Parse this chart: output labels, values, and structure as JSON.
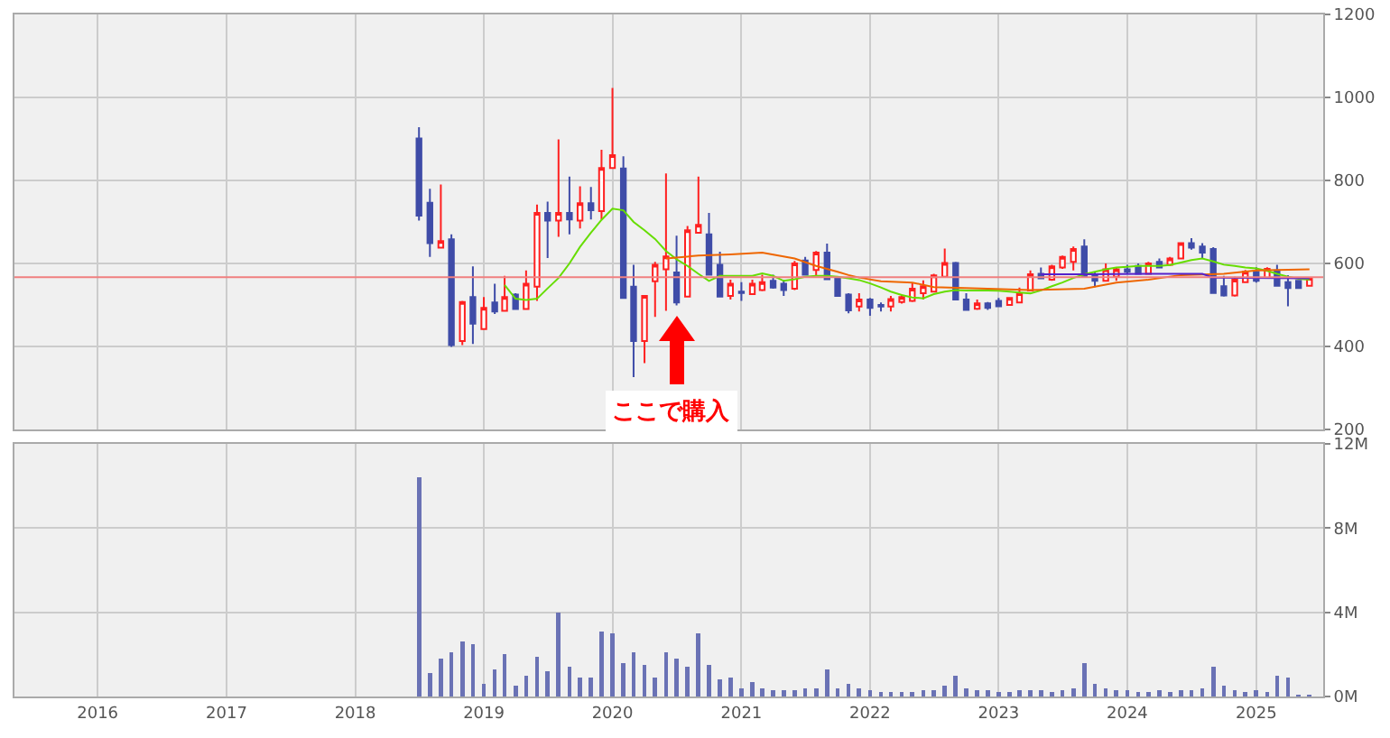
{
  "chart_data": [
    {
      "type": "candlestick",
      "xlim": [
        "2015-05-10",
        "2025-07-10"
      ],
      "xticks": [
        "2016",
        "2017",
        "2018",
        "2019",
        "2020",
        "2021",
        "2022",
        "2023",
        "2024",
        "2025"
      ],
      "ylim": [
        200,
        1200
      ],
      "yticks": [
        200,
        400,
        600,
        800,
        1000,
        1200
      ],
      "grid": true,
      "tick_labels": "y",
      "ref_lines": [
        {
          "axis": "y",
          "value": 567,
          "color": "#f08080"
        }
      ],
      "annotations": [
        "ここで購入"
      ],
      "x": [
        "2018-07",
        "2018-08",
        "2018-09",
        "2018-10",
        "2018-11",
        "2018-12",
        "2019-01",
        "2019-02",
        "2019-03",
        "2019-04",
        "2019-05",
        "2019-06",
        "2019-07",
        "2019-08",
        "2019-09",
        "2019-10",
        "2019-11",
        "2019-12",
        "2020-01",
        "2020-02",
        "2020-03",
        "2020-04",
        "2020-05",
        "2020-06",
        "2020-07",
        "2020-08",
        "2020-09",
        "2020-10",
        "2020-11",
        "2020-12",
        "2021-01",
        "2021-02",
        "2021-03",
        "2021-04",
        "2021-05",
        "2021-06",
        "2021-07",
        "2021-08",
        "2021-09",
        "2021-10",
        "2021-11",
        "2021-12",
        "2022-01",
        "2022-02",
        "2022-03",
        "2022-04",
        "2022-05",
        "2022-06",
        "2022-07",
        "2022-08",
        "2022-09",
        "2022-10",
        "2022-11",
        "2022-12",
        "2023-01",
        "2023-02",
        "2023-03",
        "2023-04",
        "2023-05",
        "2023-06",
        "2023-07",
        "2023-08",
        "2023-09",
        "2023-10",
        "2023-11",
        "2023-12",
        "2024-01",
        "2024-02",
        "2024-03",
        "2024-04",
        "2024-05",
        "2024-06",
        "2024-07",
        "2024-08",
        "2024-09",
        "2024-10",
        "2024-11",
        "2024-12",
        "2025-01",
        "2025-02",
        "2025-03",
        "2025-04",
        "2025-05",
        "2025-06"
      ],
      "ohlc": [
        [
          901,
          928,
          703,
          715
        ],
        [
          746,
          780,
          616,
          649
        ],
        [
          638,
          790,
          638,
          654
        ],
        [
          658,
          670,
          399,
          403
        ],
        [
          413,
          510,
          403,
          507
        ],
        [
          519,
          593,
          406,
          455
        ],
        [
          442,
          519,
          442,
          493
        ],
        [
          506,
          551,
          478,
          484
        ],
        [
          486,
          570,
          486,
          519
        ],
        [
          525,
          528,
          488,
          490
        ],
        [
          490,
          583,
          490,
          551
        ],
        [
          544,
          742,
          510,
          722
        ],
        [
          722,
          749,
          613,
          703
        ],
        [
          703,
          899,
          664,
          722
        ],
        [
          722,
          809,
          670,
          706
        ],
        [
          703,
          786,
          684,
          745
        ],
        [
          745,
          784,
          706,
          728
        ],
        [
          726,
          874,
          706,
          830
        ],
        [
          830,
          1023,
          830,
          861
        ],
        [
          829,
          858,
          517,
          517
        ],
        [
          544,
          597,
          326,
          413
        ],
        [
          413,
          522,
          360,
          522
        ],
        [
          557,
          604,
          471,
          597
        ],
        [
          586,
          817,
          486,
          617
        ],
        [
          578,
          667,
          499,
          506
        ],
        [
          520,
          690,
          520,
          680
        ],
        [
          674,
          809,
          674,
          693
        ],
        [
          670,
          722,
          573,
          573
        ],
        [
          597,
          628,
          520,
          520
        ],
        [
          522,
          561,
          513,
          551
        ],
        [
          532,
          555,
          510,
          529
        ],
        [
          526,
          561,
          526,
          551
        ],
        [
          536,
          573,
          533,
          555
        ],
        [
          558,
          573,
          539,
          542
        ],
        [
          551,
          561,
          522,
          536
        ],
        [
          539,
          606,
          536,
          600
        ],
        [
          607,
          616,
          571,
          573
        ],
        [
          584,
          630,
          571,
          626
        ],
        [
          626,
          648,
          560,
          562
        ],
        [
          565,
          565,
          520,
          522
        ],
        [
          525,
          528,
          480,
          487
        ],
        [
          496,
          528,
          484,
          513
        ],
        [
          513,
          517,
          474,
          493
        ],
        [
          500,
          506,
          484,
          496
        ],
        [
          496,
          522,
          484,
          514
        ],
        [
          507,
          525,
          503,
          519
        ],
        [
          510,
          554,
          507,
          539
        ],
        [
          528,
          559,
          513,
          545
        ],
        [
          532,
          575,
          532,
          571
        ],
        [
          568,
          636,
          565,
          601
        ],
        [
          601,
          604,
          513,
          513
        ],
        [
          513,
          528,
          488,
          488
        ],
        [
          491,
          513,
          488,
          504
        ],
        [
          504,
          507,
          488,
          493
        ],
        [
          510,
          517,
          496,
          497
        ],
        [
          500,
          517,
          500,
          517
        ],
        [
          506,
          542,
          506,
          528
        ],
        [
          535,
          583,
          535,
          574
        ],
        [
          575,
          590,
          564,
          564
        ],
        [
          561,
          597,
          558,
          593
        ],
        [
          590,
          619,
          587,
          616
        ],
        [
          604,
          641,
          583,
          635
        ],
        [
          641,
          658,
          568,
          568
        ],
        [
          574,
          580,
          543,
          558
        ],
        [
          558,
          600,
          558,
          586
        ],
        [
          568,
          590,
          558,
          586
        ],
        [
          586,
          597,
          575,
          580
        ],
        [
          594,
          600,
          575,
          575
        ],
        [
          575,
          604,
          575,
          600
        ],
        [
          604,
          612,
          590,
          590
        ],
        [
          597,
          616,
          594,
          612
        ],
        [
          612,
          649,
          612,
          649
        ],
        [
          649,
          661,
          633,
          638
        ],
        [
          641,
          649,
          612,
          626
        ],
        [
          635,
          639,
          529,
          529
        ],
        [
          545,
          570,
          520,
          523
        ],
        [
          523,
          568,
          520,
          561
        ],
        [
          555,
          584,
          555,
          580
        ],
        [
          580,
          591,
          554,
          558
        ],
        [
          565,
          591,
          565,
          587
        ],
        [
          583,
          597,
          546,
          546
        ],
        [
          555,
          572,
          497,
          541
        ],
        [
          558,
          558,
          541,
          541
        ],
        [
          546,
          565,
          546,
          565
        ]
      ],
      "series": [
        {
          "type": "line",
          "color": "#66dd00",
          "x": [
            "2019-03",
            "2019-04",
            "2019-05",
            "2019-06",
            "2019-07",
            "2019-08",
            "2019-09",
            "2019-10",
            "2019-11",
            "2019-12",
            "2020-01",
            "2020-02",
            "2020-03",
            "2020-04",
            "2020-05",
            "2020-06",
            "2020-07",
            "2020-08",
            "2020-09",
            "2020-10",
            "2020-11",
            "2020-12",
            "2021-01",
            "2021-02",
            "2021-03",
            "2021-04",
            "2021-05",
            "2021-06",
            "2021-07",
            "2021-08",
            "2021-09",
            "2021-10",
            "2021-11",
            "2021-12",
            "2022-01",
            "2022-02",
            "2022-03",
            "2022-04",
            "2022-05",
            "2022-06",
            "2022-07",
            "2022-08",
            "2022-09",
            "2022-10",
            "2022-11",
            "2022-12",
            "2023-01",
            "2023-02",
            "2023-03",
            "2023-04",
            "2023-05",
            "2023-06",
            "2023-07",
            "2023-08",
            "2023-09",
            "2023-10",
            "2023-11",
            "2023-12",
            "2024-01",
            "2024-02",
            "2024-03",
            "2024-04",
            "2024-05",
            "2024-06",
            "2024-07",
            "2024-08",
            "2024-09",
            "2024-10",
            "2024-11",
            "2024-12",
            "2025-01",
            "2025-02",
            "2025-03",
            "2025-04",
            "2025-05",
            "2025-06"
          ],
          "values": [
            548,
            515,
            512,
            515,
            540,
            565,
            600,
            640,
            674,
            705,
            732,
            728,
            700,
            680,
            659,
            630,
            610,
            594,
            575,
            558,
            570,
            570,
            570,
            570,
            576,
            570,
            558,
            562,
            568,
            570,
            570,
            568,
            564,
            560,
            552,
            542,
            532,
            524,
            518,
            516,
            526,
            532,
            536,
            535,
            535,
            535,
            534,
            532,
            530,
            528,
            535,
            545,
            554,
            565,
            574,
            580,
            586,
            590,
            592,
            594,
            594,
            594,
            596,
            602,
            608,
            612,
            605,
            597,
            594,
            590,
            588,
            582,
            575,
            568,
            563,
            561
          ]
        },
        {
          "type": "line",
          "color": "#ee6600",
          "x": [
            "2020-06",
            "2020-09",
            "2020-12",
            "2021-03",
            "2021-06",
            "2021-08",
            "2021-10",
            "2021-11",
            "2021-12",
            "2022-02",
            "2022-05",
            "2022-07",
            "2022-12",
            "2023-04",
            "2023-09",
            "2023-12",
            "2024-03",
            "2024-06",
            "2024-10",
            "2025-01",
            "2025-06"
          ],
          "values": [
            612,
            619,
            622,
            626,
            612,
            594,
            580,
            572,
            566,
            557,
            554,
            543,
            539,
            536,
            539,
            554,
            561,
            572,
            575,
            583,
            586
          ]
        },
        {
          "type": "line",
          "color": "#5522cc",
          "x": [
            "2023-05",
            "2023-09",
            "2024-03",
            "2024-08",
            "2024-09",
            "2025-06"
          ],
          "values": [
            574,
            574,
            575,
            575,
            566,
            564
          ]
        }
      ]
    },
    {
      "type": "bar",
      "color": "#6a72b5",
      "xlim": [
        "2015-05-10",
        "2025-07-10"
      ],
      "xticks": [
        "2016",
        "2017",
        "2018",
        "2019",
        "2020",
        "2021",
        "2022",
        "2023",
        "2024",
        "2025"
      ],
      "ylim": [
        0,
        12
      ],
      "yticks": [
        {
          "value": 0,
          "label": "0M"
        },
        {
          "value": 4,
          "label": "4M"
        },
        {
          "value": 8,
          "label": "8M"
        },
        {
          "value": 12,
          "label": "12M"
        }
      ],
      "grid": true,
      "x": [
        "2018-07",
        "2018-08",
        "2018-09",
        "2018-10",
        "2018-11",
        "2018-12",
        "2019-01",
        "2019-02",
        "2019-03",
        "2019-04",
        "2019-05",
        "2019-06",
        "2019-07",
        "2019-08",
        "2019-09",
        "2019-10",
        "2019-11",
        "2019-12",
        "2020-01",
        "2020-02",
        "2020-03",
        "2020-04",
        "2020-05",
        "2020-06",
        "2020-07",
        "2020-08",
        "2020-09",
        "2020-10",
        "2020-11",
        "2020-12",
        "2021-01",
        "2021-02",
        "2021-03",
        "2021-04",
        "2021-05",
        "2021-06",
        "2021-07",
        "2021-08",
        "2021-09",
        "2021-10",
        "2021-11",
        "2021-12",
        "2022-01",
        "2022-02",
        "2022-03",
        "2022-04",
        "2022-05",
        "2022-06",
        "2022-07",
        "2022-08",
        "2022-09",
        "2022-10",
        "2022-11",
        "2022-12",
        "2023-01",
        "2023-02",
        "2023-03",
        "2023-04",
        "2023-05",
        "2023-06",
        "2023-07",
        "2023-08",
        "2023-09",
        "2023-10",
        "2023-11",
        "2023-12",
        "2024-01",
        "2024-02",
        "2024-03",
        "2024-04",
        "2024-05",
        "2024-06",
        "2024-07",
        "2024-08",
        "2024-09",
        "2024-10",
        "2024-11",
        "2024-12",
        "2025-01",
        "2025-02",
        "2025-03",
        "2025-04",
        "2025-05",
        "2025-06"
      ],
      "values": [
        10.4,
        1.1,
        1.8,
        2.1,
        2.6,
        2.5,
        0.6,
        1.3,
        2.0,
        0.5,
        1.0,
        1.9,
        1.2,
        4.0,
        1.4,
        0.9,
        0.9,
        3.1,
        3.0,
        1.6,
        2.1,
        1.5,
        0.9,
        2.1,
        1.8,
        1.4,
        3.0,
        1.5,
        0.8,
        0.9,
        0.4,
        0.7,
        0.4,
        0.3,
        0.3,
        0.3,
        0.4,
        0.4,
        1.3,
        0.4,
        0.6,
        0.4,
        0.3,
        0.2,
        0.2,
        0.2,
        0.2,
        0.3,
        0.3,
        0.5,
        1.0,
        0.4,
        0.3,
        0.3,
        0.2,
        0.2,
        0.3,
        0.3,
        0.3,
        0.2,
        0.3,
        0.4,
        1.6,
        0.6,
        0.4,
        0.3,
        0.3,
        0.2,
        0.2,
        0.3,
        0.2,
        0.3,
        0.3,
        0.4,
        1.4,
        0.5,
        0.3,
        0.2,
        0.3,
        0.2,
        1.0,
        0.9,
        0.1,
        0.1
      ]
    }
  ]
}
